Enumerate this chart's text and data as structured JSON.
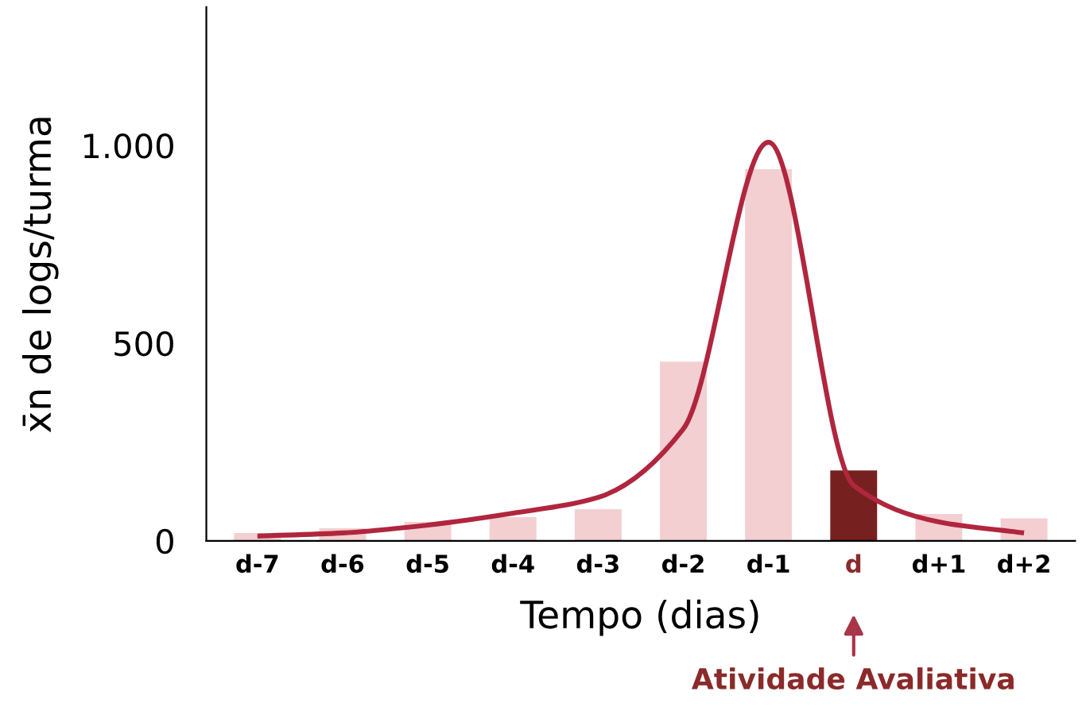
{
  "chart_data": {
    "type": "bar",
    "xlabel": "Tempo (dias)",
    "ylabel": "x̄n de logs/turma",
    "categories": [
      "d-7",
      "d-6",
      "d-5",
      "d-4",
      "d-3",
      "d-2",
      "d-1",
      "d",
      "d+1",
      "d+2"
    ],
    "series": [
      {
        "values": [
          20,
          32,
          48,
          60,
          80,
          453,
          940,
          178,
          68,
          57
        ],
        "colors": [
          "#f3cfd1",
          "#f3cfd1",
          "#f3cfd1",
          "#f3cfd1",
          "#f3cfd1",
          "#f3cfd1",
          "#f3cfd1",
          "#76201f",
          "#f3cfd1",
          "#f3cfd1"
        ]
      },
      {
        "type": "line",
        "color": "#b0263e",
        "values": [
          12,
          20,
          40,
          70,
          110,
          283,
          1008,
          140,
          48,
          20
        ]
      }
    ],
    "ylim": [
      0,
      1350
    ],
    "yticks": [
      0,
      500,
      {
        "value": 1000,
        "label": "1.000"
      }
    ],
    "annotations": [
      "Atividade Avaliativa"
    ],
    "grid": false,
    "legend": false
  }
}
